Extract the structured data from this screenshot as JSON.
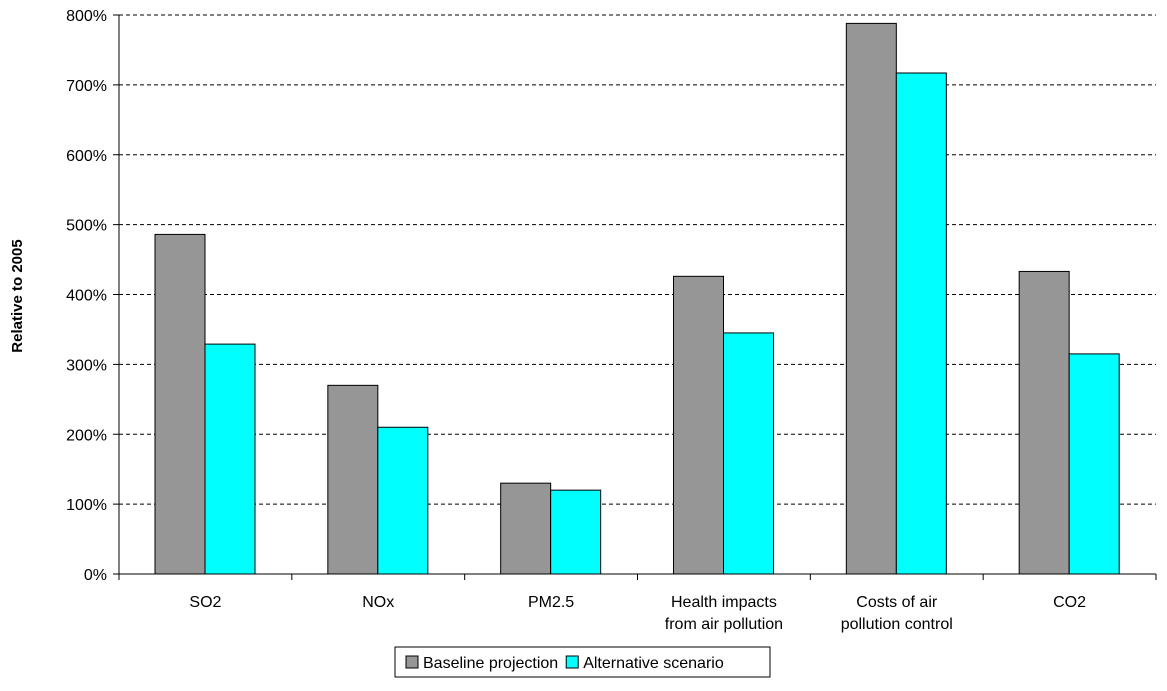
{
  "chart_data": {
    "type": "bar",
    "title": "",
    "xlabel": "",
    "ylabel": "Relative to 2005",
    "ylim": [
      0,
      800
    ],
    "y_tick_step": 100,
    "y_tick_suffix": "%",
    "grid": true,
    "grid_style": "dashed",
    "legend_position": "bottom-center",
    "categories": [
      [
        "SO2"
      ],
      [
        "NOx"
      ],
      [
        "PM2.5"
      ],
      [
        "Health impacts",
        "from air pollution"
      ],
      [
        "Costs of air",
        "pollution control"
      ],
      [
        "CO2"
      ]
    ],
    "series": [
      {
        "name": "Baseline projection",
        "color": "#969696",
        "values": [
          486,
          270,
          130,
          426,
          788,
          433
        ]
      },
      {
        "name": "Alternative scenario",
        "color": "#00FFFF",
        "values": [
          329,
          210,
          120,
          345,
          717,
          315
        ]
      }
    ]
  }
}
